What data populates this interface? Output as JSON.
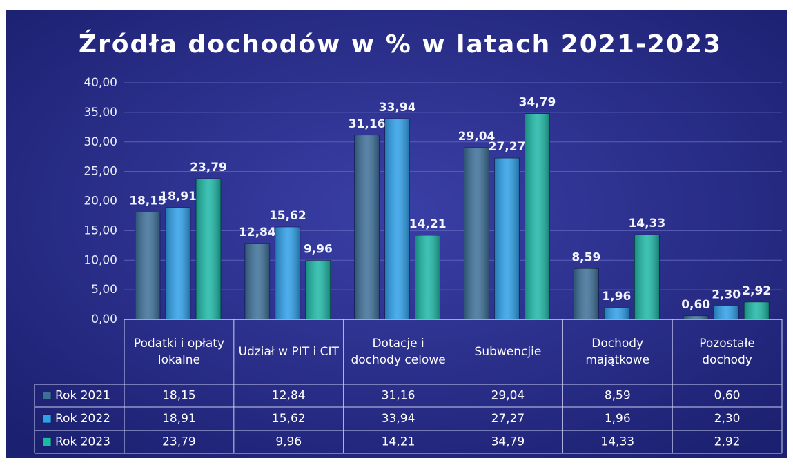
{
  "chart_data": {
    "type": "bar",
    "title": "Źródła dochodów w % w latach 2021-2023",
    "categories": [
      "Podatki i opłaty lokalne",
      "Udział w PIT i CIT",
      "Dotacje i dochody celowe",
      "Subwencjie",
      "Dochody majątkowe",
      "Pozostałe dochody"
    ],
    "series": [
      {
        "name": "Rok 2021",
        "color": "#3d6f98",
        "values": [
          18.15,
          12.84,
          31.16,
          29.04,
          8.59,
          0.6
        ],
        "value_labels": [
          "18,15",
          "12,84",
          "31,16",
          "29,04",
          "8,59",
          "0,60"
        ]
      },
      {
        "name": "Rok 2022",
        "color": "#2e9fe8",
        "values": [
          18.91,
          15.62,
          33.94,
          27.27,
          1.96,
          2.3
        ],
        "value_labels": [
          "18,91",
          "15,62",
          "33,94",
          "27,27",
          "1,96",
          "2,30"
        ]
      },
      {
        "name": "Rok 2023",
        "color": "#1db8a6",
        "values": [
          23.79,
          9.96,
          14.21,
          34.79,
          14.33,
          2.92
        ],
        "value_labels": [
          "23,79",
          "9,96",
          "14,21",
          "34,79",
          "14,33",
          "2,92"
        ]
      }
    ],
    "ylim": [
      0,
      40
    ],
    "yticks": [
      {
        "value": 0,
        "label": "0,00"
      },
      {
        "value": 5,
        "label": "5,00"
      },
      {
        "value": 10,
        "label": "10,00"
      },
      {
        "value": 15,
        "label": "15,00"
      },
      {
        "value": 20,
        "label": "20,00"
      },
      {
        "value": 25,
        "label": "25,00"
      },
      {
        "value": 30,
        "label": "30,00"
      },
      {
        "value": 35,
        "label": "35,00"
      },
      {
        "value": 40,
        "label": "40,00"
      }
    ],
    "grid": true
  }
}
